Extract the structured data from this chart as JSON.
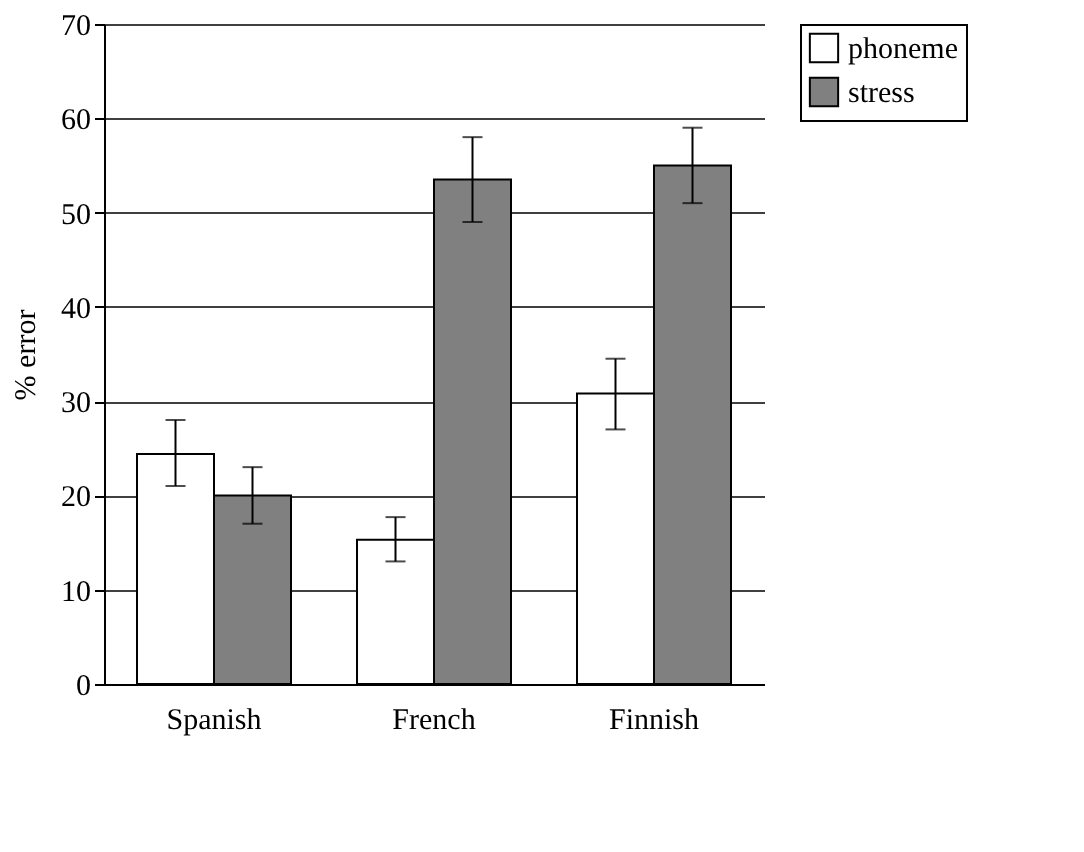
{
  "chart_data": {
    "type": "bar",
    "ylabel": "% error",
    "categories": [
      "Spanish",
      "French",
      "Finnish"
    ],
    "series": [
      {
        "name": "phoneme",
        "color": "#ffffff",
        "values": [
          24.4,
          15.3,
          30.8
        ],
        "errors": [
          [
            21,
            28
          ],
          [
            13,
            17.7
          ],
          [
            27,
            34.5
          ]
        ]
      },
      {
        "name": "stress",
        "color": "#808080",
        "values": [
          20,
          53.5,
          55
        ],
        "errors": [
          [
            17,
            23
          ],
          [
            49,
            58
          ],
          [
            51,
            59
          ]
        ]
      }
    ],
    "ylim": [
      0,
      70
    ],
    "yticks": [
      0,
      10,
      20,
      30,
      40,
      50,
      60,
      70
    ],
    "grid": "y",
    "legend": "right"
  }
}
